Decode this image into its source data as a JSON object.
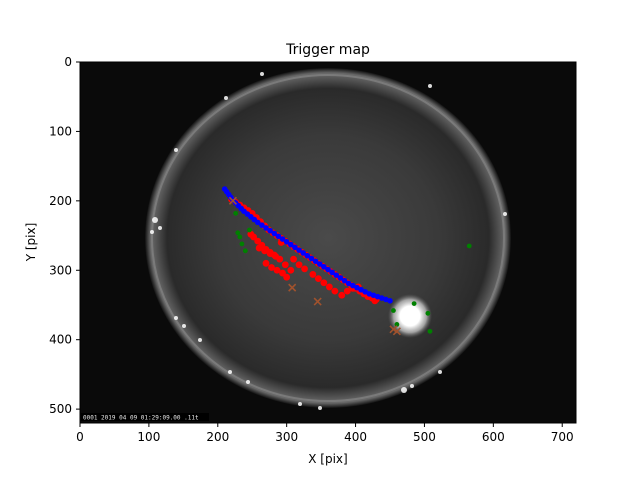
{
  "chart_data": {
    "type": "scatter",
    "title": "Trigger map",
    "xlabel": "X [pix]",
    "ylabel": "Y [pix]",
    "xlim": [
      0,
      720
    ],
    "ylim": [
      520,
      0
    ],
    "xticks": [
      0,
      100,
      200,
      300,
      400,
      500,
      600,
      700
    ],
    "yticks": [
      0,
      100,
      200,
      300,
      400,
      500
    ],
    "background": "fisheye all-sky camera frame (grayscale)",
    "image_stamp": "0001 2019 04 09 01:29:09.00 .11t",
    "colors": {
      "blue": "#0000ff",
      "red": "#ff0000",
      "green": "#008000",
      "brown": "#a0522d"
    },
    "series": [
      {
        "marker": "blue-dot",
        "x": [
          210,
          213,
          216,
          219,
          222,
          226,
          230,
          234,
          238,
          243,
          248,
          253,
          258,
          264,
          270,
          276,
          282,
          288,
          294,
          300,
          306,
          312,
          318,
          324,
          330,
          336,
          342,
          348,
          354,
          360,
          366,
          372,
          378,
          384,
          390,
          396,
          402,
          408,
          414,
          420,
          426,
          432,
          438,
          444,
          450
        ],
        "y": [
          183,
          187,
          191,
          195,
          199,
          203,
          207,
          211,
          215,
          219,
          223,
          227,
          231,
          235,
          239,
          243,
          247,
          251,
          255,
          259,
          263,
          267,
          271,
          275,
          279,
          283,
          287,
          291,
          295,
          299,
          303,
          307,
          311,
          315,
          319,
          322,
          325,
          328,
          331,
          334,
          336,
          338,
          340,
          342,
          344
        ]
      },
      {
        "marker": "red-dot",
        "x": [
          220,
          226,
          232,
          238,
          244,
          250,
          256,
          262,
          268,
          274,
          280,
          286,
          292,
          298,
          304,
          310,
          316,
          322,
          328,
          334,
          340,
          346,
          352,
          358,
          364,
          370,
          376,
          382,
          388,
          394,
          400,
          406,
          412,
          418,
          424,
          430,
          248,
          252,
          258,
          264,
          270,
          276,
          282,
          290,
          298,
          306,
          270,
          278,
          286,
          294,
          300,
          260,
          268,
          276,
          284,
          292,
          310,
          318,
          326,
          338,
          346,
          354,
          362,
          370,
          380,
          388,
          396,
          404,
          418,
          428
        ],
        "y": [
          198,
          202,
          206,
          210,
          214,
          218,
          224,
          230,
          236,
          242,
          246,
          250,
          254,
          258,
          262,
          266,
          270,
          274,
          278,
          282,
          286,
          290,
          294,
          298,
          302,
          306,
          310,
          314,
          318,
          322,
          326,
          330,
          334,
          338,
          340,
          342,
          248,
          252,
          258,
          264,
          270,
          274,
          278,
          284,
          292,
          300,
          290,
          296,
          300,
          304,
          310,
          268,
          272,
          276,
          280,
          260,
          284,
          292,
          298,
          306,
          312,
          318,
          324,
          330,
          336,
          330,
          326,
          324,
          336,
          344
        ]
      },
      {
        "marker": "green-dot",
        "x": [
          226,
          229,
          232,
          235,
          240,
          246,
          455,
          460,
          485,
          505,
          508,
          565
        ],
        "y": [
          218,
          246,
          252,
          262,
          272,
          242,
          358,
          378,
          348,
          362,
          388,
          265
        ]
      },
      {
        "marker": "brown-x",
        "x": [
          222,
          308,
          345,
          455,
          460
        ],
        "y": [
          200,
          325,
          345,
          385,
          388
        ]
      }
    ]
  }
}
